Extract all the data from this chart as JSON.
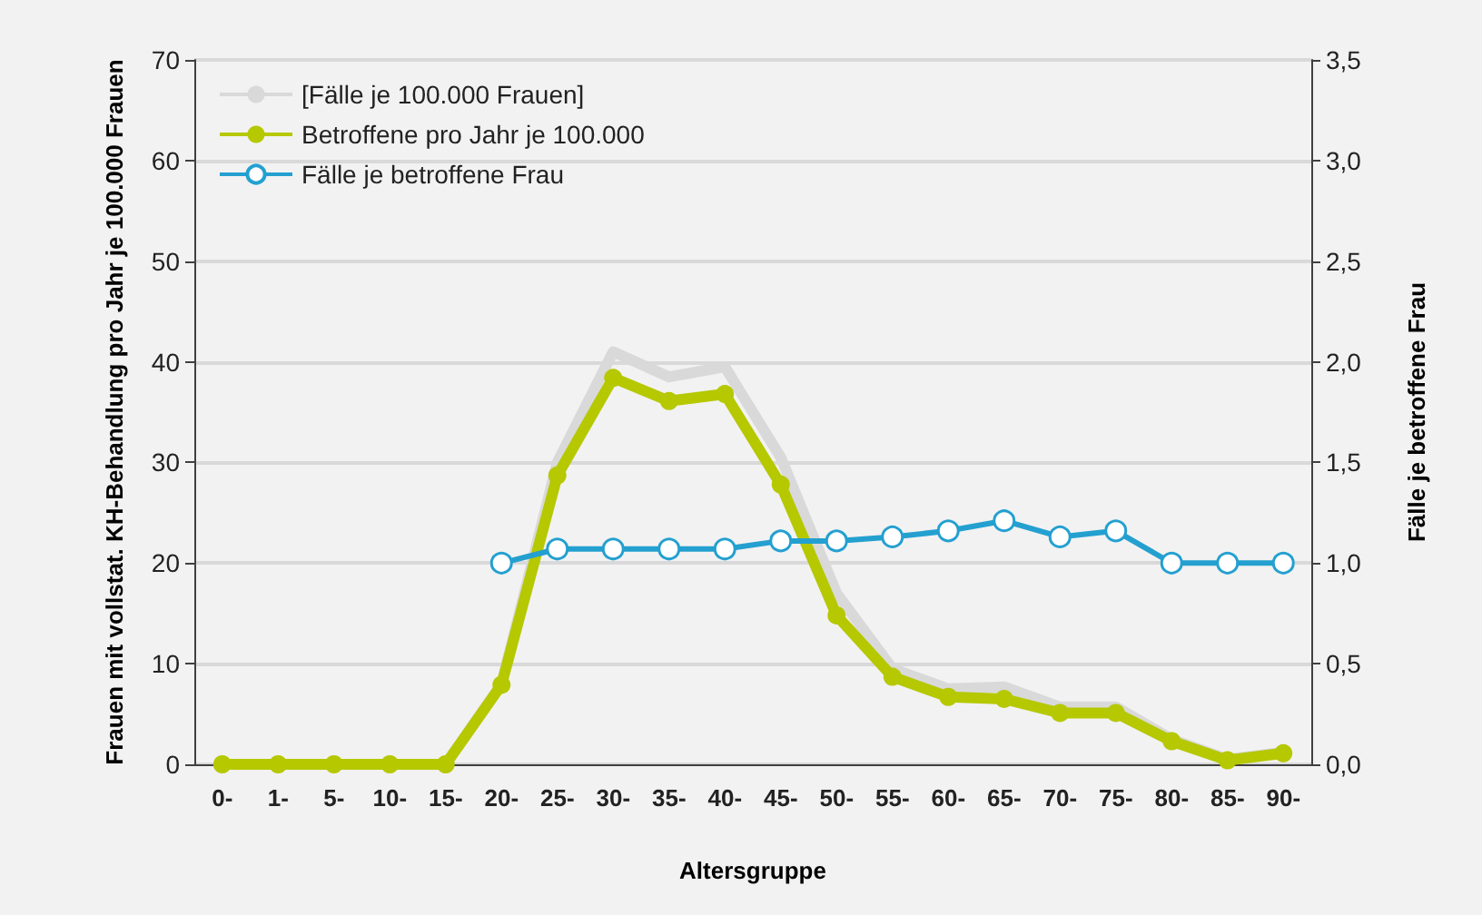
{
  "chart_data": {
    "type": "line",
    "xlabel": "Altersgruppe",
    "ylabel": "Frauen mit vollstat. KH-Behandlung pro Jahr je 100.000 Frauen",
    "y2label": "Fälle je betroffene Frau",
    "categories": [
      "0-",
      "1-",
      "5-",
      "10-",
      "15-",
      "20-",
      "25-",
      "30-",
      "35-",
      "40-",
      "45-",
      "50-",
      "55-",
      "60-",
      "65-",
      "70-",
      "75-",
      "80-",
      "85-",
      "90-"
    ],
    "series": [
      {
        "name": "[Fälle je 100.000 Frauen]",
        "color": "#d9d9d9",
        "marker": "none",
        "values": [
          0,
          0,
          0,
          0,
          0,
          8,
          30,
          41,
          38.5,
          39.5,
          30.5,
          17,
          9.5,
          7.5,
          7.7,
          5.7,
          5.7,
          2.5,
          0.5,
          1.2
        ]
      },
      {
        "name": "Betroffene pro Jahr je 100.000",
        "color": "#b5c800",
        "marker": "circle",
        "values": [
          0,
          0,
          0,
          0,
          0,
          7.9,
          28.7,
          38.4,
          36.1,
          36.8,
          27.8,
          14.8,
          8.7,
          6.7,
          6.5,
          5.1,
          5.1,
          2.3,
          0.4,
          1.1
        ]
      },
      {
        "name": "Fälle je betroffene Frau",
        "color": "#24a0d0",
        "marker": "circle",
        "axis": "y2",
        "values": [
          null,
          null,
          null,
          null,
          null,
          1.0,
          1.07,
          1.07,
          1.07,
          1.07,
          1.11,
          1.11,
          1.13,
          1.16,
          1.21,
          1.13,
          1.16,
          1.0,
          1.0,
          1.0
        ]
      }
    ],
    "ylim": [
      0,
      70
    ],
    "yticks": [
      0,
      10,
      20,
      30,
      40,
      50,
      60,
      70
    ],
    "y2lim": [
      0,
      3.5
    ],
    "y2ticks": [
      {
        "value": 0,
        "label": "0,0"
      },
      {
        "value": 0.5,
        "label": "0,5"
      },
      {
        "value": 1,
        "label": "1,0"
      },
      {
        "value": 1.5,
        "label": "1,5"
      },
      {
        "value": 2,
        "label": "2,0"
      },
      {
        "value": 2.5,
        "label": "2,5"
      },
      {
        "value": 3,
        "label": "3,0"
      },
      {
        "value": 3.5,
        "label": "3,5"
      }
    ],
    "grid": "y",
    "legend": "top left"
  }
}
